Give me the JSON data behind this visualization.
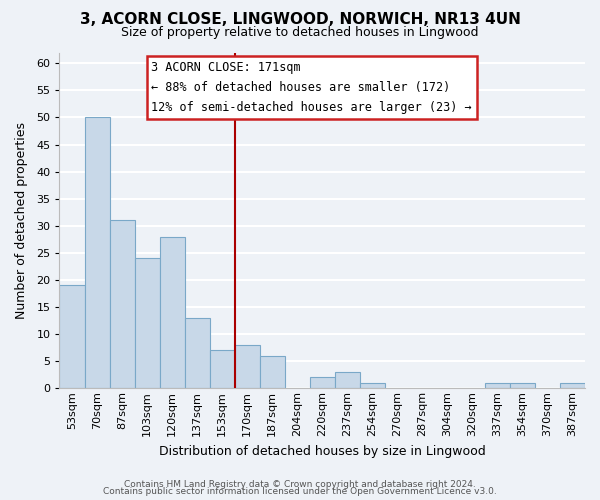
{
  "title": "3, ACORN CLOSE, LINGWOOD, NORWICH, NR13 4UN",
  "subtitle": "Size of property relative to detached houses in Lingwood",
  "xlabel": "Distribution of detached houses by size in Lingwood",
  "ylabel": "Number of detached properties",
  "bar_color": "#c8d8e8",
  "bar_edge_color": "#7aa8c8",
  "bins": [
    "53sqm",
    "70sqm",
    "87sqm",
    "103sqm",
    "120sqm",
    "137sqm",
    "153sqm",
    "170sqm",
    "187sqm",
    "204sqm",
    "220sqm",
    "237sqm",
    "254sqm",
    "270sqm",
    "287sqm",
    "304sqm",
    "320sqm",
    "337sqm",
    "354sqm",
    "370sqm",
    "387sqm"
  ],
  "counts": [
    19,
    50,
    31,
    24,
    28,
    13,
    7,
    8,
    6,
    0,
    2,
    3,
    1,
    0,
    0,
    0,
    0,
    1,
    1,
    0,
    1
  ],
  "ylim": [
    0,
    62
  ],
  "yticks": [
    0,
    5,
    10,
    15,
    20,
    25,
    30,
    35,
    40,
    45,
    50,
    55,
    60
  ],
  "property_line_idx": 7,
  "property_line_color": "#aa0000",
  "annotation_title": "3 ACORN CLOSE: 171sqm",
  "annotation_line1": "← 88% of detached houses are smaller (172)",
  "annotation_line2": "12% of semi-detached houses are larger (23) →",
  "annotation_box_color": "#ffffff",
  "annotation_box_edge": "#cc2222",
  "footer1": "Contains HM Land Registry data © Crown copyright and database right 2024.",
  "footer2": "Contains public sector information licensed under the Open Government Licence v3.0.",
  "background_color": "#eef2f7",
  "grid_color": "#ffffff"
}
